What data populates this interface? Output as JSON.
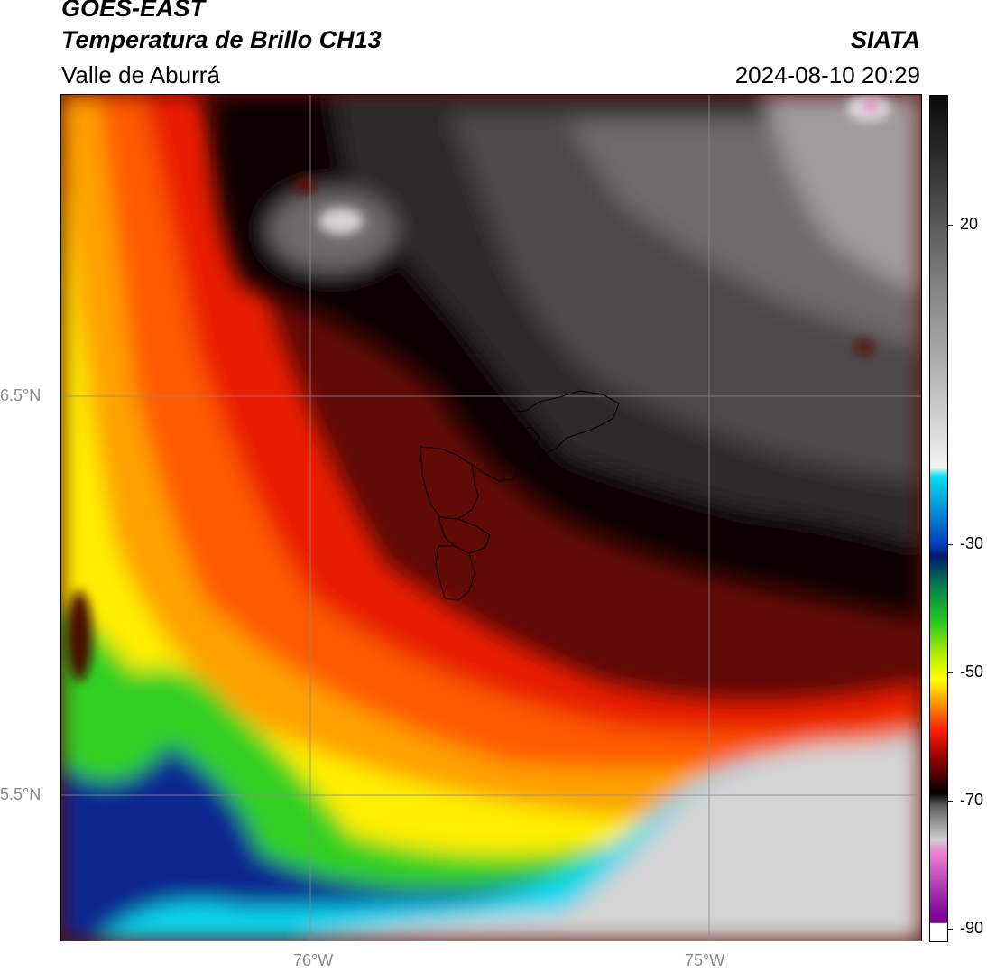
{
  "header": {
    "satellite": "GOES-EAST",
    "product": "Temperatura de Brillo CH13",
    "region": "Valle de Aburrá",
    "brand": "SIATA",
    "datetime": "2024-08-10 20:29"
  },
  "map": {
    "lat_labels": [
      "6.5°N",
      "5.5°N"
    ],
    "lon_labels": [
      "76°W",
      "75°W"
    ]
  },
  "colorbar": {
    "unit_hint": "°C",
    "tick_labels": [
      "20",
      "-30",
      "-50",
      "-70",
      "-90"
    ],
    "range": [
      -90,
      40
    ]
  },
  "colors": {
    "cold_magenta": "#d040c0",
    "cyan": "#00e0ff",
    "dark_blue": "#00208a",
    "green": "#20e020",
    "yellow": "#ffff00",
    "orange": "#ff8000",
    "red": "#ff1500",
    "dark_red": "#7a0000",
    "black": "#0a0505",
    "gray": "#707070",
    "light_gray": "#d8d8d8"
  }
}
